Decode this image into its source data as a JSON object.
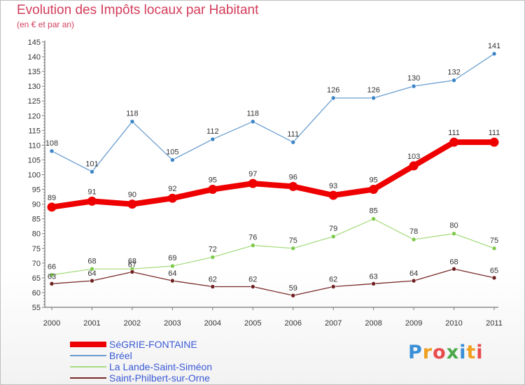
{
  "title": "Evolution des Impôts locaux par Habitant",
  "subtitle": "(en € et par an)",
  "logo": {
    "text": "Proxiti",
    "letters": [
      "P",
      "r",
      "o",
      "x",
      "i",
      "t",
      "i"
    ],
    "colors": [
      "#3a8fd6",
      "#f0a020",
      "#e84b4b",
      "#4aa84a",
      "#3a8fd6",
      "#f0a020",
      "#e84b4b"
    ]
  },
  "chart_data": {
    "type": "line",
    "title": "Evolution des Impôts locaux par Habitant",
    "subtitle": "(en € et par an)",
    "x": [
      2000,
      2001,
      2002,
      2003,
      2004,
      2005,
      2006,
      2007,
      2008,
      2009,
      2010,
      2011
    ],
    "x_tick_labels": [
      "2000",
      "2001",
      "2002",
      "2003",
      "2004",
      "2005",
      "2006",
      "2007",
      "2008",
      "2009",
      "2010",
      "2011"
    ],
    "ylim": [
      55,
      145
    ],
    "y_ticks": [
      55,
      60,
      65,
      70,
      75,
      80,
      85,
      90,
      95,
      100,
      105,
      110,
      115,
      120,
      125,
      130,
      135,
      140,
      145
    ],
    "y_tick_labels": [
      "55",
      "60",
      "65",
      "70",
      "75",
      "80",
      "85",
      "90",
      "95",
      "100",
      "105",
      "110",
      "115",
      "120",
      "125",
      "130",
      "135",
      "140",
      "145"
    ],
    "grid": false,
    "legend_position": "bottom-left",
    "series": [
      {
        "name": "SéGRIE-FONTAINE",
        "values": [
          89,
          91,
          90,
          92,
          95,
          97,
          96,
          93,
          95,
          103,
          111,
          111
        ],
        "labels": [
          "89",
          "91",
          "90",
          "92",
          "95",
          "97",
          "96",
          "93",
          "95",
          "103",
          "111",
          "111"
        ],
        "color": "#ee0000",
        "marker_color": "#ee0000"
      },
      {
        "name": "Bréel",
        "values": [
          108,
          101,
          118,
          105,
          112,
          118,
          111,
          126,
          126,
          130,
          132,
          141
        ],
        "labels": [
          "108",
          "101",
          "118",
          "105",
          "112",
          "118",
          "111",
          "126",
          "126",
          "130",
          "132",
          "141"
        ],
        "color": "#6a9ecf",
        "marker_color": "#3b84c8"
      },
      {
        "name": "La Lande-Saint-Siméon",
        "values": [
          66,
          68,
          68,
          69,
          72,
          76,
          75,
          79,
          85,
          78,
          80,
          75
        ],
        "labels": [
          "66",
          "68",
          "68",
          "69",
          "72",
          "76",
          "75",
          "79",
          "85",
          "78",
          "80",
          "75"
        ],
        "color": "#a8dc80",
        "marker_color": "#7cc94a"
      },
      {
        "name": "Saint-Philbert-sur-Orne",
        "values": [
          63,
          64,
          67,
          64,
          62,
          62,
          59,
          62,
          63,
          64,
          68,
          65
        ],
        "labels": [
          "63",
          "64",
          "67",
          "64",
          "62",
          "62",
          "59",
          "62",
          "63",
          "64",
          "68",
          "65"
        ],
        "color": "#7a2a2a",
        "marker_color": "#6e1f1f"
      }
    ]
  }
}
